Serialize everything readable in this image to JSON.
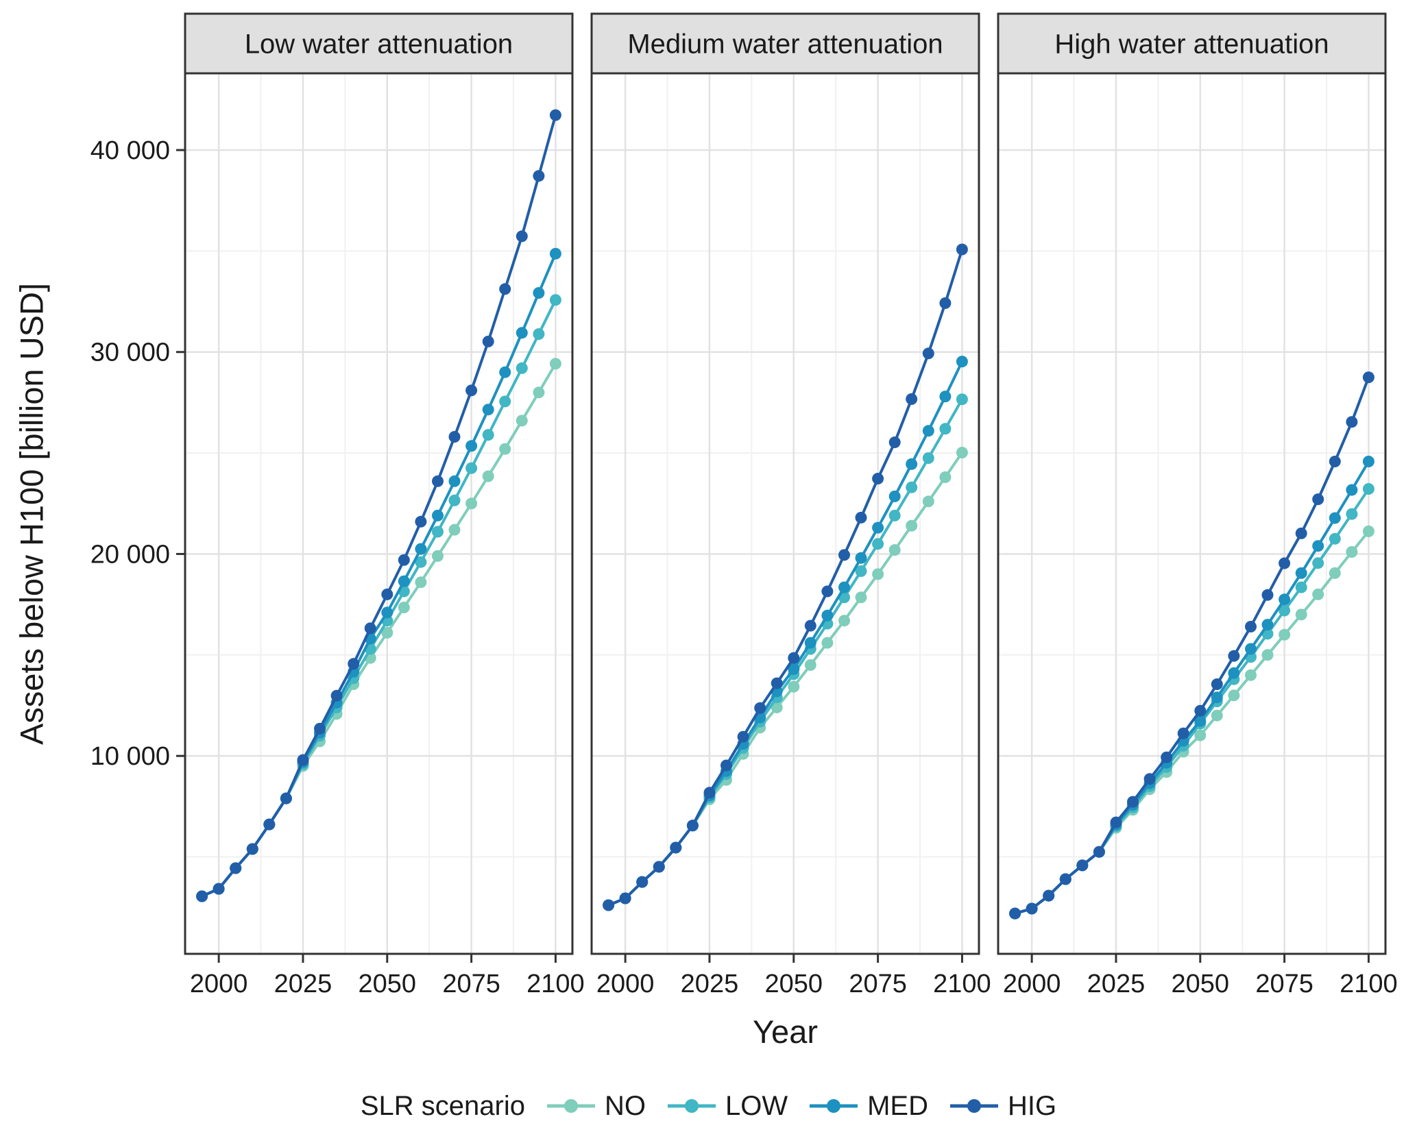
{
  "figure": {
    "background": "#ffffff"
  },
  "styles": {
    "panel_header_fill": "#e0e0e0",
    "panel_border": "#333333",
    "grid_major": "#e2e2e2",
    "grid_minor": "#f0f0f0",
    "tick_color": "#333333",
    "text_color": "#1a1a1a",
    "background": "#ffffff"
  },
  "chart_data": {
    "type": "line",
    "title": "",
    "xlabel": "Year",
    "ylabel": "Assets below H100 [billion USD]",
    "legend_title": "SLR scenario",
    "legend_position": "bottom",
    "grid": true,
    "x": [
      1995,
      2000,
      2005,
      2010,
      2015,
      2020,
      2025,
      2030,
      2035,
      2040,
      2045,
      2050,
      2055,
      2060,
      2065,
      2070,
      2075,
      2080,
      2085,
      2090,
      2095,
      2100
    ],
    "x_ticks": [
      2000,
      2025,
      2050,
      2075,
      2100
    ],
    "x_minor": [
      2012.5,
      2037.5,
      2062.5,
      2087.5
    ],
    "y_ticks": [
      {
        "value": 10000,
        "label": "10 000"
      },
      {
        "value": 20000,
        "label": "20 000"
      },
      {
        "value": 30000,
        "label": "30 000"
      },
      {
        "value": 40000,
        "label": "40 000"
      }
    ],
    "y_minor": [
      5000,
      15000,
      25000,
      35000
    ],
    "xlim": [
      1990,
      2105
    ],
    "ylim": [
      200,
      43800
    ],
    "series_order": [
      "NO",
      "LOW",
      "MED",
      "HIG"
    ],
    "colors": {
      "NO": "#7fcdbb",
      "LOW": "#41b6c4",
      "MED": "#1d91c0",
      "HIG": "#225ea8"
    },
    "panels": [
      {
        "label": "Low water attenuation",
        "series": {
          "NO": [
            3050,
            3420,
            4440,
            5390,
            6610,
            7900,
            9500,
            10720,
            12080,
            13550,
            14850,
            16100,
            17350,
            18600,
            19900,
            21200,
            22500,
            23850,
            25200,
            26600,
            28000,
            29420
          ],
          "LOW": [
            3050,
            3420,
            4440,
            5390,
            6610,
            7900,
            9600,
            11000,
            12400,
            13850,
            15300,
            16700,
            18150,
            19600,
            21100,
            22650,
            24250,
            25900,
            27550,
            29200,
            30890,
            32580
          ],
          "MED": [
            3050,
            3420,
            4440,
            5390,
            6610,
            7900,
            9700,
            11150,
            12640,
            14170,
            15810,
            17100,
            18650,
            20250,
            21900,
            23600,
            25350,
            27150,
            29000,
            30950,
            32925,
            34870
          ],
          "HIG": [
            3050,
            3420,
            4440,
            5390,
            6610,
            7900,
            9800,
            11350,
            12980,
            14560,
            16320,
            18000,
            19700,
            21600,
            23600,
            25800,
            28100,
            30520,
            33120,
            35730,
            38720,
            41730
          ]
        }
      },
      {
        "label": "Medium water attenuation",
        "series": {
          "NO": [
            2610,
            2950,
            3760,
            4510,
            5460,
            6550,
            7850,
            8810,
            10100,
            11400,
            12400,
            13430,
            14500,
            15600,
            16700,
            17850,
            19000,
            20200,
            21400,
            22600,
            23800,
            25020
          ],
          "LOW": [
            2610,
            2950,
            3760,
            4510,
            5460,
            6550,
            7950,
            9100,
            10400,
            11700,
            12900,
            14050,
            15300,
            16550,
            17850,
            19150,
            20500,
            21900,
            23300,
            24750,
            26200,
            27660
          ],
          "MED": [
            2610,
            2950,
            3760,
            4510,
            5460,
            6550,
            8050,
            9250,
            10600,
            11910,
            13200,
            14300,
            15600,
            16950,
            18350,
            19800,
            21300,
            22850,
            24450,
            26100,
            27800,
            29530
          ],
          "HIG": [
            2610,
            2950,
            3760,
            4510,
            5460,
            6550,
            8180,
            9530,
            10950,
            12370,
            13600,
            14850,
            16450,
            18150,
            19950,
            21800,
            23730,
            25530,
            27670,
            29930,
            32420,
            35080
          ]
        }
      },
      {
        "label": "High water attenuation",
        "series": {
          "NO": [
            2200,
            2440,
            3080,
            3900,
            4580,
            5250,
            6440,
            7330,
            8350,
            9200,
            10210,
            11020,
            12000,
            13000,
            14000,
            15000,
            16000,
            17000,
            18000,
            19050,
            20100,
            21120
          ],
          "LOW": [
            2200,
            2440,
            3080,
            3900,
            4580,
            5250,
            6520,
            7450,
            8500,
            9450,
            10500,
            11600,
            12700,
            13800,
            14900,
            16050,
            17200,
            18350,
            19550,
            20750,
            21980,
            23220
          ],
          "MED": [
            2200,
            2440,
            3080,
            3900,
            4580,
            5250,
            6600,
            7580,
            8650,
            9660,
            10750,
            11730,
            12900,
            14100,
            15300,
            16500,
            17750,
            19050,
            20400,
            21780,
            23170,
            24580
          ],
          "HIG": [
            2200,
            2440,
            3080,
            3900,
            4580,
            5250,
            6710,
            7730,
            8860,
            9930,
            11120,
            12240,
            13550,
            14950,
            16400,
            17970,
            19540,
            21020,
            22710,
            24580,
            26540,
            28750
          ]
        }
      }
    ]
  }
}
